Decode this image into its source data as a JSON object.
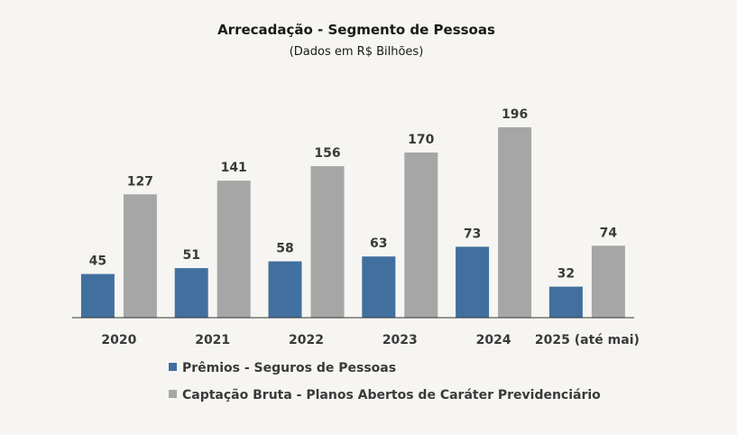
{
  "chart_data": {
    "type": "bar",
    "title": "Arrecadação - Segmento de Pessoas",
    "subtitle": "(Dados em R$ Bilhões)",
    "categories": [
      "2020",
      "2021",
      "2022",
      "2023",
      "2024",
      "2025 (até mai)"
    ],
    "series": [
      {
        "name": "Prêmios - Seguros de Pessoas",
        "color": "#41709e",
        "values": [
          45,
          51,
          58,
          63,
          73,
          32
        ]
      },
      {
        "name": "Captação Bruta - Planos Abertos de Caráter Previdenciário",
        "color": "#a6a6a6",
        "values": [
          127,
          141,
          156,
          170,
          196,
          74
        ]
      }
    ],
    "ylim": [
      0,
      196
    ],
    "grid": false,
    "legend_position": "bottom-left",
    "data_labels": true
  }
}
